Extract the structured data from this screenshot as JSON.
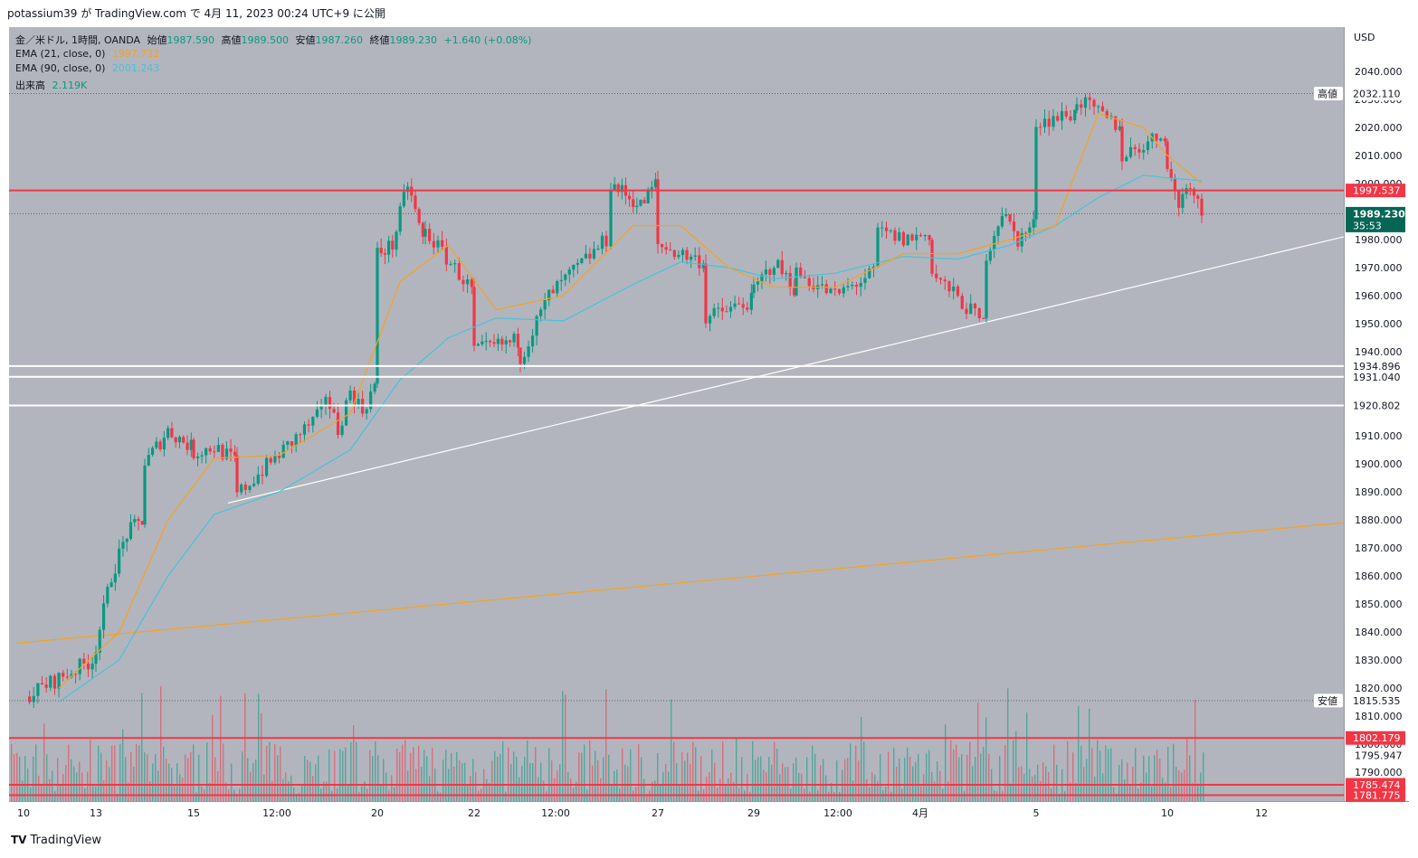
{
  "header": {
    "published": "potassium39 が TradingView.com で 4月 11, 2023 00:24 UTC+9 に公開"
  },
  "legend": {
    "symbol": "金／米ドル, 1時間, OANDA",
    "open_label": "始値",
    "open": "1987.590",
    "high_label": "高値",
    "high": "1989.500",
    "low_label": "安値",
    "low": "1987.260",
    "close_label": "終値",
    "close": "1989.230",
    "change": "+1.640 (+0.08%)",
    "ema21_label": "EMA (21, close, 0)",
    "ema21_value": "1997.732",
    "ema90_label": "EMA (90, close, 0)",
    "ema90_value": "2001.243",
    "volume_label": "出来高",
    "volume_value": "2.119K"
  },
  "colors": {
    "background": "#b2b5be",
    "up": "#089981",
    "down": "#f23645",
    "ema21": "#f7a21b",
    "ema90": "#45c3d9",
    "resistance": "#f23645",
    "support": "#ffffff"
  },
  "chart_data": {
    "type": "candlestick",
    "currency": "USD",
    "y_ticks": [
      "2040.000",
      "2030.000",
      "2020.000",
      "2010.000",
      "2000.000",
      "1990.000",
      "1980.000",
      "1970.000",
      "1960.000",
      "1950.000",
      "1940.000",
      "1930.000",
      "1920.000",
      "1910.000",
      "1900.000",
      "1890.000",
      "1880.000",
      "1870.000",
      "1860.000",
      "1850.000",
      "1840.000",
      "1830.000",
      "1820.000",
      "1810.000",
      "1800.000",
      "1795.947",
      "1790.000"
    ],
    "x_labels": [
      "10",
      "13",
      "15",
      "12:00",
      "20",
      "22",
      "12:00",
      "27",
      "29",
      "12:00",
      "4月",
      "5",
      "10",
      "12"
    ],
    "high_marker": {
      "label": "高値",
      "value": "2032.110"
    },
    "low_marker": {
      "label": "安値",
      "value": "1815.535"
    },
    "last_price": {
      "value": "1989.230",
      "countdown": "35:53"
    },
    "horizontal_levels": [
      {
        "value": "1997.537",
        "color": "#f23645"
      },
      {
        "value": "1934.896",
        "color": "#ffffff"
      },
      {
        "value": "1931.040",
        "color": "#ffffff"
      },
      {
        "value": "1920.802",
        "color": "#ffffff"
      },
      {
        "value": "1802.179",
        "color": "#f23645"
      },
      {
        "value": "1785.474",
        "color": "#f23645"
      },
      {
        "value": "1781.775",
        "color": "#f23645"
      }
    ],
    "trendlines": [
      {
        "color": "#ffffff",
        "from": {
          "date": "3月 16",
          "price": 1886
        },
        "to": {
          "date": "4月 12",
          "price": 1981
        }
      },
      {
        "color": "#f7a21b",
        "from": {
          "date": "3月 10",
          "price": 1836
        },
        "to": {
          "date": "4月 12",
          "price": 1879
        }
      }
    ],
    "close_path": [
      [
        "3月 10",
        1817
      ],
      [
        "3月 10",
        1830
      ],
      [
        "3月 13",
        1835
      ],
      [
        "3月 13",
        1860
      ],
      [
        "3月 13",
        1875
      ],
      [
        "3月 13",
        1880
      ],
      [
        "3月 14",
        1900
      ],
      [
        "3月 14",
        1912
      ],
      [
        "3月 14",
        1906
      ],
      [
        "3月 15",
        1904
      ],
      [
        "3月 15",
        1906
      ],
      [
        "3月 15",
        1901
      ],
      [
        "3月 16",
        1889
      ],
      [
        "3月 16",
        1918
      ],
      [
        "3月 17",
        1925
      ],
      [
        "3月 17",
        1912
      ],
      [
        "3月 17",
        1926
      ],
      [
        "3月 17",
        1919
      ],
      [
        "3月 17",
        1928
      ],
      [
        "3月 20",
        1975
      ],
      [
        "3月 20",
        1978
      ],
      [
        "3月 20",
        2000
      ],
      [
        "3月 20",
        1980
      ],
      [
        "3月 21",
        1983
      ],
      [
        "3月 21",
        1962
      ],
      [
        "3月 22",
        1940
      ],
      [
        "3月 22",
        1944
      ],
      [
        "3月 23",
        1938
      ],
      [
        "3月 23",
        1960
      ],
      [
        "3月 23",
        1970
      ],
      [
        "3月 23",
        1980
      ],
      [
        "3月 24",
        2000
      ],
      [
        "3月 24",
        1996
      ],
      [
        "3月 24",
        1992
      ],
      [
        "3月 24",
        2000
      ],
      [
        "3月 27",
        1978
      ],
      [
        "3月 27",
        1972
      ],
      [
        "3月 28",
        1952
      ],
      [
        "3月 28",
        1958
      ],
      [
        "3月 29",
        1962
      ],
      [
        "3月 29",
        1972
      ],
      [
        "3月 29",
        1963
      ],
      [
        "3月 30",
        1968
      ],
      [
        "3月 30",
        1960
      ],
      [
        "3月 30",
        1968
      ],
      [
        "3月 31",
        1983
      ],
      [
        "3月 31",
        1980
      ],
      [
        "3月 31",
        1982
      ],
      [
        "4月 3",
        1968
      ],
      [
        "4月 3",
        1950
      ],
      [
        "4月 4",
        1975
      ],
      [
        "4月 4",
        1990
      ],
      [
        "4月 4",
        1980
      ],
      [
        "4月 4",
        1985
      ],
      [
        "4月 5",
        2022
      ],
      [
        "4月 5",
        2025
      ],
      [
        "4月 6",
        2030
      ],
      [
        "4月 6",
        2020
      ],
      [
        "4月 7",
        2010
      ],
      [
        "4月 7",
        2018
      ],
      [
        "4月 10",
        2005
      ],
      [
        "4月 10",
        1993
      ],
      [
        "4月 10",
        2001
      ],
      [
        "4月 10",
        1989.23
      ]
    ],
    "ema21": [
      [
        "3月 10",
        1820
      ],
      [
        "3月 13",
        1840
      ],
      [
        "3月 14",
        1880
      ],
      [
        "3月 15",
        1902
      ],
      [
        "3月 16",
        1903
      ],
      [
        "3月 17",
        1918
      ],
      [
        "3月 20",
        1965
      ],
      [
        "3月 21",
        1978
      ],
      [
        "3月 22",
        1955
      ],
      [
        "3月 23",
        1960
      ],
      [
        "3月 24",
        1985
      ],
      [
        "3月 27",
        1985
      ],
      [
        "3月 28",
        1970
      ],
      [
        "3月 29",
        1963
      ],
      [
        "3月 30",
        1963
      ],
      [
        "3月 31",
        1975
      ],
      [
        "4月 3",
        1975
      ],
      [
        "4月 4",
        1980
      ],
      [
        "4月 5",
        1985
      ],
      [
        "4月 6",
        2025
      ],
      [
        "4月 7",
        2020
      ],
      [
        "4月 10",
        2010
      ],
      [
        "4月 10",
        2000
      ]
    ],
    "ema90": [
      [
        "3月 10",
        1815
      ],
      [
        "3月 13",
        1830
      ],
      [
        "3月 14",
        1860
      ],
      [
        "3月 15",
        1882
      ],
      [
        "3月 16",
        1890
      ],
      [
        "3月 17",
        1905
      ],
      [
        "3月 20",
        1930
      ],
      [
        "3月 21",
        1945
      ],
      [
        "3月 22",
        1952
      ],
      [
        "3月 23",
        1951
      ],
      [
        "3月 24",
        1964
      ],
      [
        "3月 27",
        1972
      ],
      [
        "3月 28",
        1970
      ],
      [
        "3月 29",
        1966
      ],
      [
        "3月 30",
        1968
      ],
      [
        "3月 31",
        1974
      ],
      [
        "4月 3",
        1973
      ],
      [
        "4月 4",
        1978
      ],
      [
        "4月 5",
        1985
      ],
      [
        "4月 6",
        1995
      ],
      [
        "4月 7",
        2003
      ],
      [
        "4月 10",
        2002
      ],
      [
        "4月 10",
        2001
      ]
    ]
  },
  "footer": {
    "brand": "TradingView"
  }
}
